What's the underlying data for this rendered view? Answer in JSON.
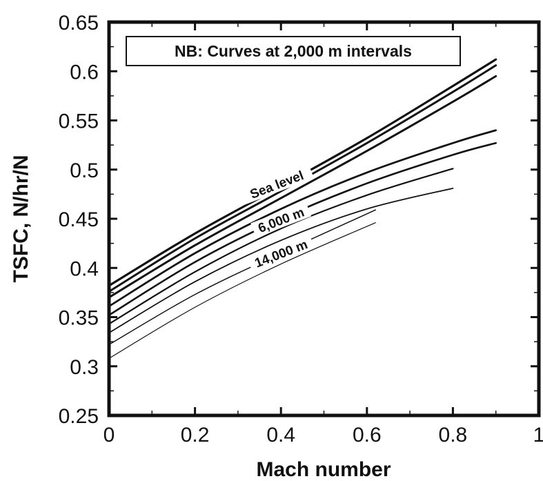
{
  "chart_data": {
    "type": "line",
    "xlabel": "Mach number",
    "ylabel": "TSFC, N/hr/N",
    "xlim": [
      0,
      1
    ],
    "ylim": [
      0.25,
      0.65
    ],
    "xticks": [
      0,
      0.2,
      0.4,
      0.6,
      0.8,
      1
    ],
    "xtick_labels": [
      "0",
      "0.2",
      "0.4",
      "0.6",
      "0.8",
      "1"
    ],
    "yticks": [
      0.25,
      0.3,
      0.35,
      0.4,
      0.45,
      0.5,
      0.55,
      0.6,
      0.65
    ],
    "ytick_labels": [
      "0.25",
      "0.3",
      "0.35",
      "0.4",
      "0.45",
      "0.5",
      "0.55",
      "0.6",
      "0.65"
    ],
    "grid": false,
    "note": "NB: Curves at 2,000 m intervals",
    "series": [
      {
        "x": [
          0,
          0.2,
          0.4,
          0.6,
          0.8,
          0.9
        ],
        "y": [
          0.382,
          0.435,
          0.483,
          0.532,
          0.585,
          0.612
        ]
      },
      {
        "x": [
          0,
          0.2,
          0.4,
          0.6,
          0.8,
          0.9
        ],
        "y": [
          0.376,
          0.43,
          0.478,
          0.527,
          0.579,
          0.606
        ]
      },
      {
        "x": [
          0,
          0.2,
          0.4,
          0.6,
          0.8,
          0.9
        ],
        "y": [
          0.37,
          0.423,
          0.471,
          0.519,
          0.569,
          0.595
        ]
      },
      {
        "x": [
          0,
          0.2,
          0.4,
          0.6,
          0.8,
          0.9
        ],
        "y": [
          0.361,
          0.415,
          0.46,
          0.497,
          0.527,
          0.54
        ]
      },
      {
        "x": [
          0,
          0.2,
          0.4,
          0.6,
          0.8,
          0.9
        ],
        "y": [
          0.352,
          0.406,
          0.45,
          0.486,
          0.515,
          0.527
        ]
      },
      {
        "x": [
          0,
          0.2,
          0.4,
          0.6,
          0.8
        ],
        "y": [
          0.343,
          0.396,
          0.44,
          0.474,
          0.501
        ]
      },
      {
        "x": [
          0,
          0.2,
          0.4,
          0.6,
          0.8
        ],
        "y": [
          0.334,
          0.386,
          0.428,
          0.46,
          0.481
        ]
      },
      {
        "x": [
          0,
          0.2,
          0.4,
          0.62
        ],
        "y": [
          0.322,
          0.373,
          0.415,
          0.459
        ]
      },
      {
        "x": [
          0,
          0.2,
          0.4,
          0.62
        ],
        "y": [
          0.308,
          0.36,
          0.404,
          0.446
        ]
      }
    ],
    "curve_labels": [
      {
        "text": "Sea level",
        "x": 0.39,
        "y": 0.485
      },
      {
        "text": "6,000 m",
        "x": 0.4,
        "y": 0.449
      },
      {
        "text": "14,000 m",
        "x": 0.4,
        "y": 0.415
      }
    ],
    "colors": {
      "line": "#111111",
      "frame": "#111111"
    }
  }
}
